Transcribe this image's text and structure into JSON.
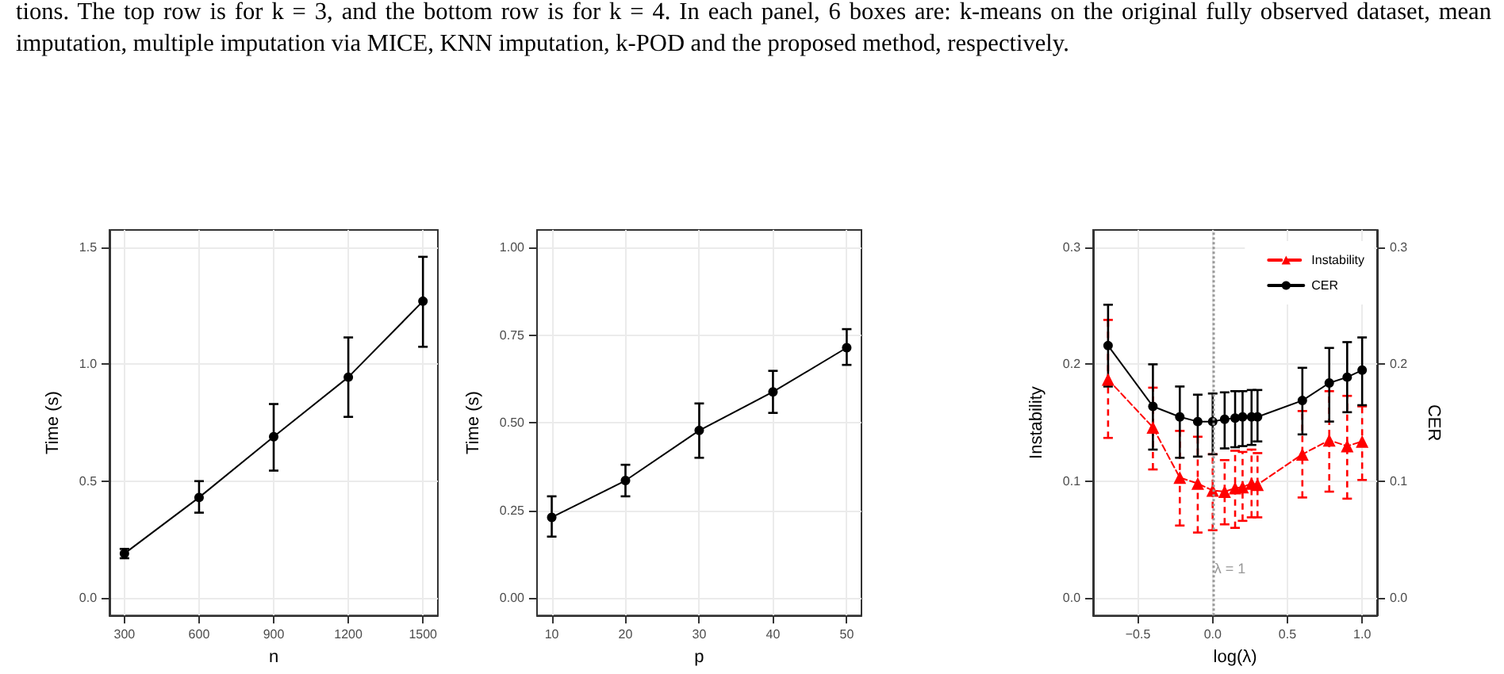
{
  "chart_data": [
    {
      "type": "line",
      "annotations": [
        "tions. The top row is for k = 3, and the bottom row is for k = 4. In each panel, 6 boxes are: k-means on the original fully observed dataset, mean imputation, multiple imputation via MICE, KNN imputation, k-POD and the proposed method, respectively."
      ],
      "xlabel": "n",
      "ylabel": "Time (s)",
      "x": [
        300,
        600,
        900,
        1200,
        1500
      ],
      "series": [
        {
          "color": "#000000",
          "values": [
            0.19,
            0.43,
            0.69,
            0.945,
            1.27
          ],
          "errors": [
            [
              0.17,
              0.21
            ],
            [
              0.365,
              0.5
            ],
            [
              0.545,
              0.83
            ],
            [
              0.775,
              1.115
            ],
            [
              1.075,
              1.46
            ]
          ]
        }
      ],
      "xlim": [
        240,
        1560
      ],
      "ylim": [
        -0.075,
        1.575
      ],
      "xticks": [
        300,
        600,
        900,
        1200,
        1500
      ],
      "yticks": [
        {
          "value": 0,
          "label": "0.0"
        },
        {
          "value": 0.5,
          "label": "0.5"
        },
        {
          "value": 1,
          "label": "1.0"
        },
        {
          "value": 1.5,
          "label": "1.5"
        }
      ],
      "grid": true,
      "marker": "circle"
    },
    {
      "type": "line",
      "xlabel": "p",
      "ylabel": "Time (s)",
      "x": [
        10,
        20,
        30,
        40,
        50
      ],
      "series": [
        {
          "color": "#000000",
          "values": [
            0.23,
            0.335,
            0.478,
            0.588,
            0.714
          ],
          "errors": [
            [
              0.175,
              0.29
            ],
            [
              0.29,
              0.38
            ],
            [
              0.4,
              0.555
            ],
            [
              0.528,
              0.648
            ],
            [
              0.665,
              0.767
            ]
          ]
        }
      ],
      "xlim": [
        8,
        52
      ],
      "ylim": [
        -0.05,
        1.05
      ],
      "xticks": [
        10,
        20,
        30,
        40,
        50
      ],
      "yticks": [
        {
          "value": 0,
          "label": "0.00"
        },
        {
          "value": 0.25,
          "label": "0.25"
        },
        {
          "value": 0.5,
          "label": "0.50"
        },
        {
          "value": 0.75,
          "label": "0.75"
        },
        {
          "value": 1,
          "label": "1.00"
        }
      ],
      "grid": true,
      "marker": "circle"
    },
    {
      "type": "line",
      "xlabel": "log(λ)",
      "ylabel": "Instability",
      "y2label": "CER",
      "x": [
        -0.7,
        -0.4,
        -0.22,
        -0.1,
        0,
        0.08,
        0.15,
        0.2,
        0.26,
        0.3,
        0.6,
        0.78,
        0.9,
        1.0
      ],
      "series": [
        {
          "name": "Instability",
          "color": "#ff0000",
          "marker": "triangle",
          "line_style": "dashed",
          "values": [
            0.187,
            0.146,
            0.103,
            0.098,
            0.092,
            0.091,
            0.094,
            0.095,
            0.098,
            0.097,
            0.123,
            0.135,
            0.13,
            0.134
          ],
          "errors": [
            [
              0.137,
              0.238
            ],
            [
              0.11,
              0.18
            ],
            [
              0.062,
              0.143
            ],
            [
              0.056,
              0.138
            ],
            [
              0.058,
              0.123
            ],
            [
              0.063,
              0.118
            ],
            [
              0.06,
              0.126
            ],
            [
              0.066,
              0.125
            ],
            [
              0.069,
              0.127
            ],
            [
              0.069,
              0.124
            ],
            [
              0.086,
              0.16
            ],
            [
              0.091,
              0.177
            ],
            [
              0.085,
              0.173
            ],
            [
              0.101,
              0.164
            ]
          ]
        },
        {
          "name": "CER",
          "color": "#000000",
          "marker": "circle",
          "line_style": "solid",
          "values": [
            0.216,
            0.164,
            0.155,
            0.151,
            0.151,
            0.153,
            0.154,
            0.155,
            0.155,
            0.155,
            0.169,
            0.184,
            0.189,
            0.195
          ],
          "errors": [
            [
              0.181,
              0.251
            ],
            [
              0.127,
              0.2
            ],
            [
              0.12,
              0.181
            ],
            [
              0.121,
              0.174
            ],
            [
              0.123,
              0.175
            ],
            [
              0.128,
              0.176
            ],
            [
              0.129,
              0.177
            ],
            [
              0.13,
              0.177
            ],
            [
              0.131,
              0.178
            ],
            [
              0.134,
              0.178
            ],
            [
              0.14,
              0.197
            ],
            [
              0.151,
              0.214
            ],
            [
              0.159,
              0.219
            ],
            [
              0.165,
              0.223
            ]
          ]
        }
      ],
      "xlim": [
        -0.8,
        1.1
      ],
      "ylim": [
        -0.015,
        0.315
      ],
      "y2lim": [
        -0.015,
        0.315
      ],
      "xticks": [
        {
          "value": -0.5,
          "label": "−0.5"
        },
        {
          "value": 0,
          "label": "0.0"
        },
        {
          "value": 0.5,
          "label": "0.5"
        },
        {
          "value": 1,
          "label": "1.0"
        }
      ],
      "yticks": [
        {
          "value": 0,
          "label": "0.0"
        },
        {
          "value": 0.1,
          "label": "0.1"
        },
        {
          "value": 0.2,
          "label": "0.2"
        },
        {
          "value": 0.3,
          "label": "0.3"
        }
      ],
      "y2ticks": [
        {
          "value": 0,
          "label": "0.0"
        },
        {
          "value": 0.1,
          "label": "0.1"
        },
        {
          "value": 0.2,
          "label": "0.2"
        },
        {
          "value": 0.3,
          "label": "0.3"
        }
      ],
      "ref_lines": [
        {
          "axis": "x",
          "value": 0,
          "color": "#999999",
          "line_style": "dotted"
        }
      ],
      "annotations": [
        {
          "text": "λ = 1",
          "x": 0,
          "y": 0.025
        }
      ],
      "grid": true,
      "legend": "top right"
    }
  ]
}
